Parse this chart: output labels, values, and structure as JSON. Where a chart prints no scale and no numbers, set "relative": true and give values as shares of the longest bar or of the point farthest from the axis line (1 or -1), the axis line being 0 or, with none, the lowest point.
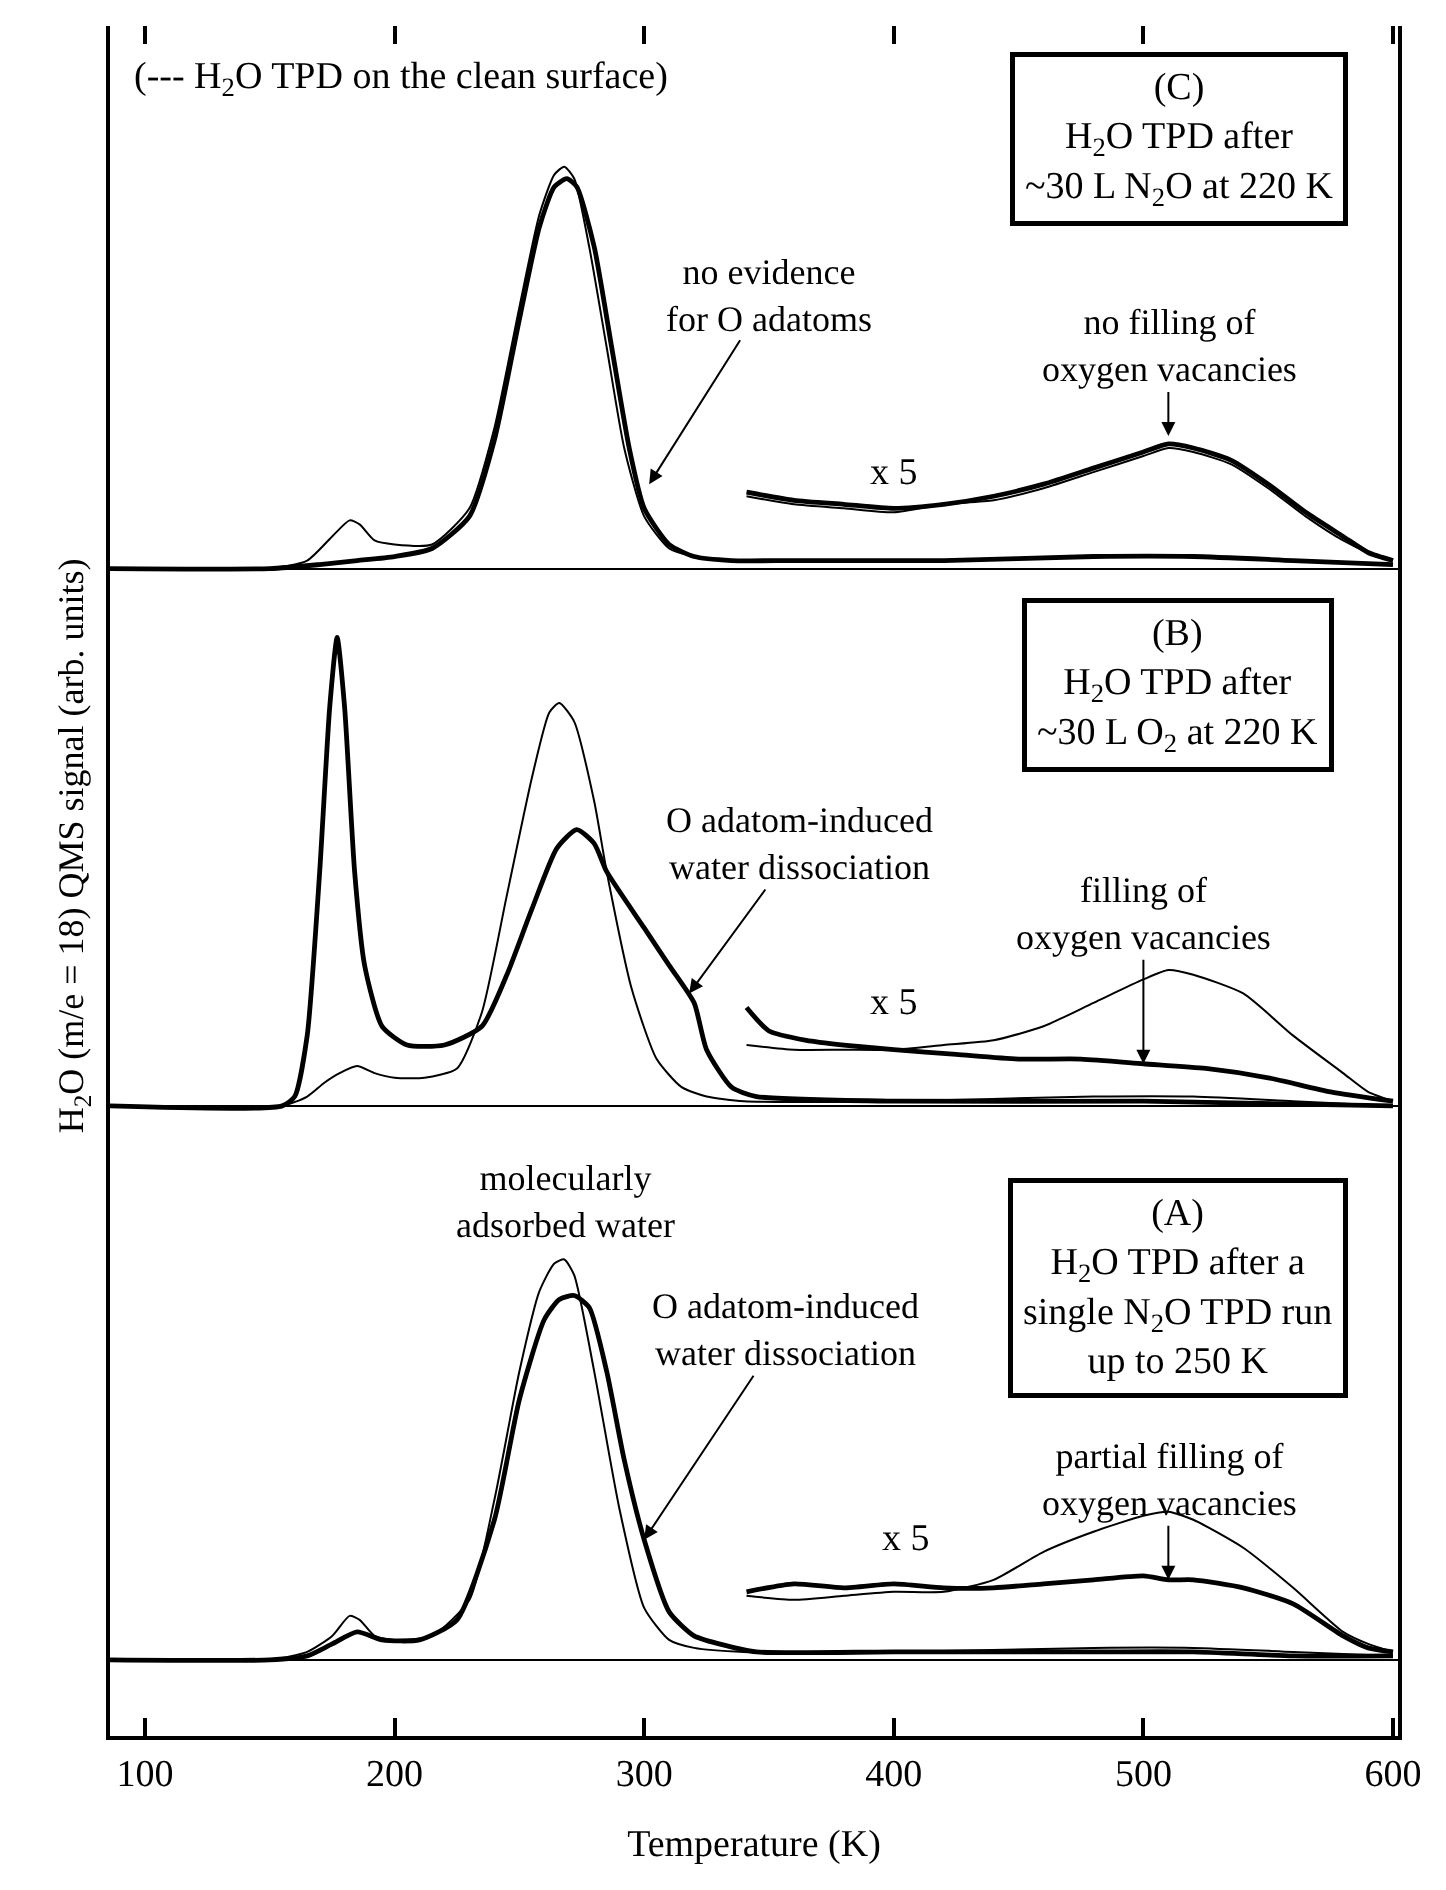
{
  "chart_data": [
    {
      "type": "line",
      "relative": true,
      "tick_labels": false,
      "xlim": [
        86,
        602
      ],
      "xticks": [
        100,
        200,
        300,
        400,
        500,
        600
      ],
      "series": [
        {
          "color": "#000000",
          "x": [
            86,
            150,
            165,
            175,
            182,
            186,
            192,
            200,
            215,
            230,
            240,
            250,
            258,
            264,
            268,
            272,
            278,
            285,
            292,
            300,
            310,
            320,
            335,
            360,
            420,
            480,
            520,
            560,
            600
          ],
          "values": [
            0,
            0,
            0.02,
            0.08,
            0.12,
            0.11,
            0.07,
            0.06,
            0.06,
            0.15,
            0.35,
            0.65,
            0.88,
            0.98,
            1.0,
            0.97,
            0.8,
            0.55,
            0.3,
            0.13,
            0.05,
            0.03,
            0.02,
            0.02,
            0.02,
            0.03,
            0.03,
            0.02,
            0.01
          ]
        },
        {
          "color": "#000000",
          "x": [
            86,
            150,
            170,
            185,
            200,
            215,
            230,
            240,
            250,
            258,
            264,
            269,
            273,
            280,
            287,
            294,
            300,
            310,
            320,
            335,
            360,
            420,
            480,
            520,
            560,
            600
          ],
          "values": [
            0,
            0,
            0.01,
            0.02,
            0.03,
            0.05,
            0.13,
            0.32,
            0.62,
            0.85,
            0.95,
            0.97,
            0.95,
            0.8,
            0.55,
            0.3,
            0.15,
            0.06,
            0.03,
            0.02,
            0.02,
            0.02,
            0.03,
            0.03,
            0.02,
            0.01
          ]
        },
        {
          "color": "#000000",
          "x": [
            341,
            360,
            380,
            400,
            420,
            440,
            460,
            480,
            500,
            510,
            520,
            535,
            550,
            565,
            580,
            590,
            600
          ],
          "values": [
            0.18,
            0.16,
            0.15,
            0.14,
            0.16,
            0.17,
            0.2,
            0.24,
            0.28,
            0.3,
            0.29,
            0.26,
            0.2,
            0.13,
            0.07,
            0.04,
            0.02
          ]
        },
        {
          "color": "#000000",
          "x": [
            341,
            360,
            380,
            400,
            420,
            440,
            460,
            480,
            500,
            510,
            520,
            535,
            550,
            565,
            580,
            590,
            600
          ],
          "values": [
            0.19,
            0.17,
            0.16,
            0.15,
            0.16,
            0.18,
            0.21,
            0.25,
            0.29,
            0.31,
            0.3,
            0.27,
            0.21,
            0.14,
            0.08,
            0.04,
            0.02
          ]
        }
      ],
      "annotations": [
        "(--- H$_{2}$O TPD on the clean surface)",
        "(C)\nH$_{2}$O TPD after\n~30 L N$_{2}$O at 220 K",
        {
          "text": "no evidence\nfor O adatoms",
          "x": 302,
          "y": 0.21
        },
        {
          "text": "no filling of\noxygen vacancies",
          "x": 510,
          "y": 0.33
        },
        "x 5"
      ]
    },
    {
      "type": "line",
      "relative": true,
      "tick_labels": false,
      "xlim": [
        86,
        602
      ],
      "ylabel": "H$_{2}$O (m/e = 18) QMS signal (arb. units)",
      "series": [
        {
          "color": "#000000",
          "x": [
            86,
            155,
            165,
            172,
            178,
            185,
            192,
            200,
            212,
            225,
            235,
            245,
            255,
            262,
            266,
            272,
            280,
            285,
            295,
            305,
            315,
            325,
            340,
            400,
            480,
            520,
            560,
            600
          ],
          "values": [
            0,
            0,
            0.02,
            0.05,
            0.07,
            0.085,
            0.07,
            0.06,
            0.06,
            0.08,
            0.2,
            0.45,
            0.7,
            0.84,
            0.86,
            0.82,
            0.65,
            0.5,
            0.25,
            0.1,
            0.04,
            0.02,
            0.01,
            0.01,
            0.02,
            0.02,
            0.01,
            0
          ]
        },
        {
          "color": "#000000",
          "x": [
            86,
            155,
            160,
            165,
            170,
            174,
            177,
            180,
            184,
            188,
            195,
            205,
            220,
            235,
            245,
            255,
            265,
            273,
            280,
            285,
            300,
            310,
            320,
            325,
            335,
            345,
            400,
            500,
            600
          ],
          "values": [
            0,
            0,
            0.02,
            0.15,
            0.5,
            0.85,
            1.0,
            0.85,
            0.5,
            0.3,
            0.17,
            0.13,
            0.13,
            0.17,
            0.28,
            0.42,
            0.55,
            0.59,
            0.56,
            0.5,
            0.38,
            0.3,
            0.22,
            0.12,
            0.04,
            0.02,
            0.01,
            0.01,
            0
          ]
        },
        {
          "color": "#000000",
          "x": [
            341,
            360,
            380,
            400,
            420,
            440,
            460,
            480,
            500,
            510,
            520,
            540,
            560,
            580,
            590,
            600
          ],
          "values": [
            0.13,
            0.12,
            0.12,
            0.12,
            0.13,
            0.14,
            0.17,
            0.22,
            0.27,
            0.29,
            0.28,
            0.24,
            0.15,
            0.07,
            0.03,
            0.01
          ]
        },
        {
          "color": "#000000",
          "x": [
            341,
            350,
            365,
            380,
            400,
            425,
            450,
            475,
            500,
            525,
            550,
            575,
            600
          ],
          "values": [
            0.21,
            0.16,
            0.14,
            0.13,
            0.12,
            0.11,
            0.1,
            0.1,
            0.09,
            0.08,
            0.06,
            0.03,
            0.01
          ]
        }
      ],
      "annotations": [
        "(B)\nH$_{2}$O TPD after\n~30 L O$_{2}$ at 220 K",
        {
          "text": "O adatom-induced\nwater dissociation",
          "x": 318,
          "y": 0.24
        },
        {
          "text": "filling of\noxygen vacancies",
          "x": 500,
          "y": 0.09
        },
        "x 5"
      ]
    },
    {
      "type": "line",
      "relative": true,
      "tick_labels": "x",
      "xlim": [
        86,
        602
      ],
      "xlabel": "Temperature (K)",
      "xticks": [
        100,
        200,
        300,
        400,
        500,
        600
      ],
      "series": [
        {
          "color": "#000000",
          "x": [
            86,
            150,
            165,
            175,
            182,
            186,
            192,
            200,
            215,
            230,
            240,
            250,
            258,
            264,
            268,
            272,
            280,
            290,
            300,
            310,
            320,
            340,
            400,
            480,
            520,
            560,
            600
          ],
          "values": [
            0,
            0,
            0.02,
            0.06,
            0.11,
            0.1,
            0.06,
            0.05,
            0.06,
            0.15,
            0.4,
            0.72,
            0.92,
            0.99,
            1.0,
            0.96,
            0.72,
            0.38,
            0.13,
            0.05,
            0.03,
            0.02,
            0.02,
            0.03,
            0.03,
            0.02,
            0.01
          ]
        },
        {
          "color": "#000000",
          "x": [
            86,
            150,
            165,
            175,
            185,
            195,
            210,
            225,
            240,
            250,
            260,
            266,
            272,
            278,
            285,
            292,
            300,
            310,
            320,
            330,
            345,
            400,
            480,
            520,
            560,
            600
          ],
          "values": [
            0,
            0,
            0.01,
            0.04,
            0.07,
            0.05,
            0.05,
            0.1,
            0.35,
            0.65,
            0.85,
            0.9,
            0.91,
            0.88,
            0.72,
            0.5,
            0.3,
            0.12,
            0.06,
            0.04,
            0.02,
            0.02,
            0.02,
            0.02,
            0.01,
            0.01
          ]
        },
        {
          "color": "#000000",
          "x": [
            341,
            360,
            380,
            400,
            420,
            440,
            460,
            480,
            500,
            510,
            520,
            540,
            560,
            580,
            590,
            600
          ],
          "values": [
            0.16,
            0.15,
            0.16,
            0.17,
            0.17,
            0.2,
            0.27,
            0.32,
            0.36,
            0.37,
            0.35,
            0.28,
            0.18,
            0.07,
            0.04,
            0.02
          ]
        },
        {
          "color": "#000000",
          "x": [
            341,
            360,
            380,
            400,
            420,
            440,
            460,
            480,
            500,
            510,
            520,
            540,
            560,
            580,
            590,
            600
          ],
          "values": [
            0.17,
            0.19,
            0.18,
            0.19,
            0.18,
            0.18,
            0.19,
            0.2,
            0.21,
            0.2,
            0.2,
            0.18,
            0.14,
            0.06,
            0.03,
            0.02
          ]
        }
      ],
      "annotations": [
        {
          "text": "molecularly\nadsorbed water",
          "x": 268,
          "y": 1.0
        },
        "(A)\nH$_{2}$O TPD after a\nsingle N$_{2}$O TPD run\nup to 250 K",
        {
          "text": "O adatom-induced\nwater dissociation",
          "x": 300,
          "y": 0.3
        },
        {
          "text": "partial filling of\noxygen vacancies",
          "x": 510,
          "y": 0.2
        },
        "x 5"
      ]
    }
  ]
}
